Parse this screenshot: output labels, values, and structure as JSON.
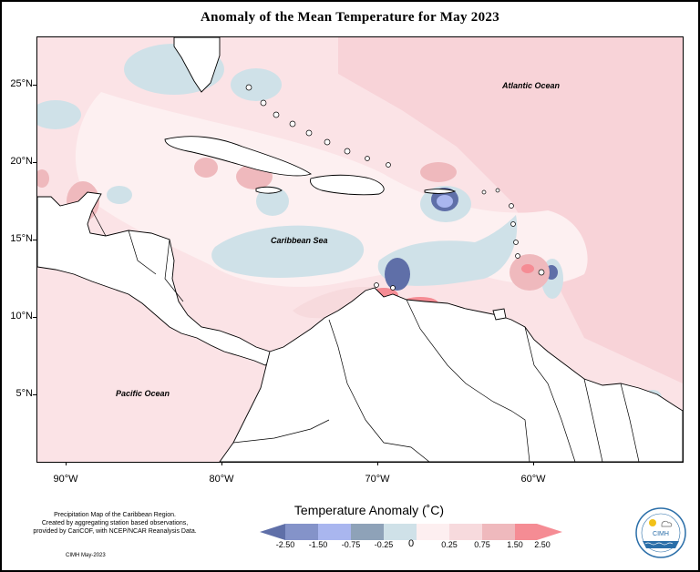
{
  "title": "Anomaly of the Mean Temperature for May 2023",
  "ocean_labels": {
    "atlantic": "Atlantic Ocean",
    "caribbean": "Caribbean Sea",
    "pacific": "Pacific Ocean"
  },
  "lat_labels": [
    "25°N",
    "20°N",
    "15°N",
    "10°N",
    "5°N"
  ],
  "lon_labels": [
    "90°W",
    "80°W",
    "70°W",
    "60°W"
  ],
  "legend": {
    "title": "Temperature Anomaly (˚C)",
    "tick_labels": [
      "-2.50",
      "-1.50",
      "-0.75",
      "-0.25",
      "0",
      "0.25",
      "0.75",
      "1.50",
      "2.50"
    ],
    "colors": [
      "#5f6fa8",
      "#8493c9",
      "#a9b6ef",
      "#8ea2b8",
      "#cfe1e8",
      "#fdeff0",
      "#f7dadd",
      "#efb9bd",
      "#f58c94"
    ]
  },
  "note_lines": [
    "Precipitation Map of the Caribbean Region.",
    "Created by aggregating station based observations,",
    "provided by CariCOF, with NCEP/NCAR Reanalysis Data."
  ],
  "credit": "CIMH May-2023",
  "logo_text": "CIMH"
}
